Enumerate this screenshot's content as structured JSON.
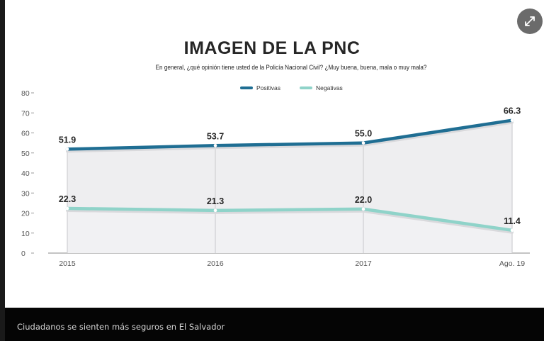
{
  "caption": "Ciudadanos se sienten más seguros en El Salvador",
  "expand_icon": "expand-arrows-icon",
  "colors": {
    "positivas": "#1f6e93",
    "negativas": "#8fd3c9",
    "fill": "#eeeef0",
    "grid": "#cfcfd2",
    "text": "#262626",
    "caption_bg": "#050505"
  },
  "chart_data": {
    "type": "line",
    "title": "IMAGEN DE LA PNC",
    "subtitle": "En general, ¿qué opinión tiene usted de la Policía Nacional Civil? ¿Muy buena, buena, mala o muy mala?",
    "categories": [
      "2015",
      "2016",
      "2017",
      "Ago. 19"
    ],
    "series": [
      {
        "name": "Positivas",
        "values": [
          51.9,
          53.7,
          55.0,
          66.3
        ],
        "labels": [
          "51.9",
          "53.7",
          "55.0",
          "66.3"
        ]
      },
      {
        "name": "Negativas",
        "values": [
          22.3,
          21.3,
          22.0,
          11.4
        ],
        "labels": [
          "22.3",
          "21.3",
          "22.0",
          "11.4"
        ]
      }
    ],
    "y_ticks": [
      "80",
      "70",
      "60",
      "50",
      "40",
      "30",
      "20",
      "10",
      "0"
    ],
    "ylim": [
      0,
      80
    ],
    "legend_position": "top-center",
    "grid": "vertical lines at categories"
  }
}
